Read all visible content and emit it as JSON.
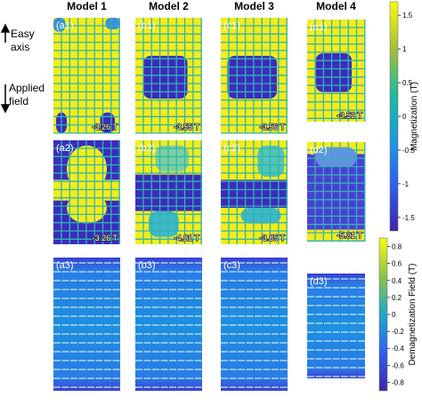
{
  "column_titles": [
    "Model 1",
    "Model 2",
    "Model 3",
    "Model 4"
  ],
  "side_labels": {
    "easy_axis": [
      "Easy",
      "axis"
    ],
    "applied_field": [
      "Applied",
      "field"
    ]
  },
  "panels": [
    [
      {
        "label": "(a1)",
        "field": "-3.26 T"
      },
      {
        "label": "(b1)",
        "field": "-3.55 T"
      },
      {
        "label": "(c1)",
        "field": "-3.56 T"
      },
      {
        "label": "(d1)",
        "field": "-3.52 T"
      }
    ],
    [
      {
        "label": "(a2)",
        "field": "-3.26 T"
      },
      {
        "label": "(b2)",
        "field": "-4.81 T"
      },
      {
        "label": "(c2)",
        "field": "-3.85 T"
      },
      {
        "label": "(d2)",
        "field": "-5.01 T"
      }
    ],
    [
      {
        "label": "(a3)"
      },
      {
        "label": "(b3)"
      },
      {
        "label": "(c3)"
      },
      {
        "label": "(d3)"
      }
    ]
  ],
  "colorbars": [
    {
      "label": "Magnetization (T)",
      "range": [
        -1.7,
        1.7
      ],
      "ticks": [
        1.5,
        1,
        0.5,
        0,
        -0.5,
        -1,
        -1.5
      ]
    },
    {
      "label": "Demagnetization Field (T)",
      "range": [
        -0.9,
        0.9
      ],
      "ticks": [
        0.8,
        0.6,
        0.4,
        0.2,
        0,
        -0.2,
        -0.4,
        -0.6,
        -0.8
      ]
    }
  ]
}
